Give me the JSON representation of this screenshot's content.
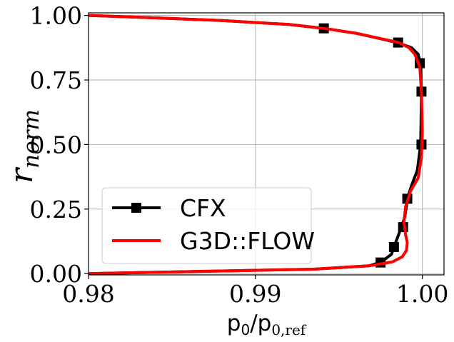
{
  "chart_data": {
    "type": "line",
    "xlabel": {
      "main": "p",
      "sub": "0",
      "sep": "/p",
      "sub2": "0,ref"
    },
    "ylabel": {
      "main": "r",
      "sub": "norm"
    },
    "xlim": [
      0.98,
      1.0013
    ],
    "ylim": [
      -0.005,
      1.01
    ],
    "xticks": [
      0.98,
      0.99,
      1.0
    ],
    "xtick_labels": [
      "0.98",
      "0.99",
      "1.00"
    ],
    "yticks": [
      0.0,
      0.25,
      0.5,
      0.75,
      1.0
    ],
    "ytick_labels": [
      "0.00",
      "0.25",
      "0.50",
      "0.75",
      "1.00"
    ],
    "grid": true,
    "legend_position": "lower-left",
    "series": [
      {
        "name": "CFX",
        "color": "#000000",
        "marker": "square",
        "x": [
          0.98,
          0.9935,
          0.9968,
          0.9975,
          0.99815,
          0.9983,
          0.99875,
          0.99895,
          0.99905,
          0.9991,
          0.99935,
          0.9997,
          0.9999,
          0.99995,
          0.9999,
          0.99975,
          0.99935,
          0.9985,
          0.9961,
          0.9941,
          0.992,
          0.988,
          0.983,
          0.98
        ],
        "y": [
          0.0,
          0.017,
          0.03,
          0.043,
          0.075,
          0.103,
          0.18,
          0.22,
          0.26,
          0.29,
          0.34,
          0.4,
          0.5,
          0.7,
          0.81,
          0.85,
          0.875,
          0.895,
          0.93,
          0.95,
          0.965,
          0.98,
          0.993,
          1.0
        ],
        "markers_x": [
          0.9975,
          0.9983,
          0.99885,
          0.9991,
          0.99995,
          0.99995,
          0.99985,
          0.99855,
          0.9941
        ],
        "markers_y": [
          0.043,
          0.103,
          0.18,
          0.29,
          0.5,
          0.705,
          0.815,
          0.895,
          0.95
        ]
      },
      {
        "name": "G3D::FLOW",
        "color": "#ff0000",
        "marker": "none",
        "x": [
          0.98,
          0.9935,
          0.9968,
          0.9982,
          0.9988,
          0.99905,
          0.9991,
          0.999,
          0.9989,
          0.999,
          0.9993,
          0.99975,
          0.99995,
          1.0,
          0.99995,
          0.99985,
          0.99955,
          0.9992,
          0.9986,
          0.9961,
          0.9941,
          0.992,
          0.988,
          0.983,
          0.98
        ],
        "y": [
          0.0,
          0.017,
          0.03,
          0.045,
          0.065,
          0.09,
          0.12,
          0.15,
          0.2,
          0.26,
          0.32,
          0.37,
          0.45,
          0.55,
          0.7,
          0.8,
          0.85,
          0.875,
          0.895,
          0.93,
          0.95,
          0.965,
          0.98,
          0.993,
          1.0
        ]
      }
    ]
  }
}
